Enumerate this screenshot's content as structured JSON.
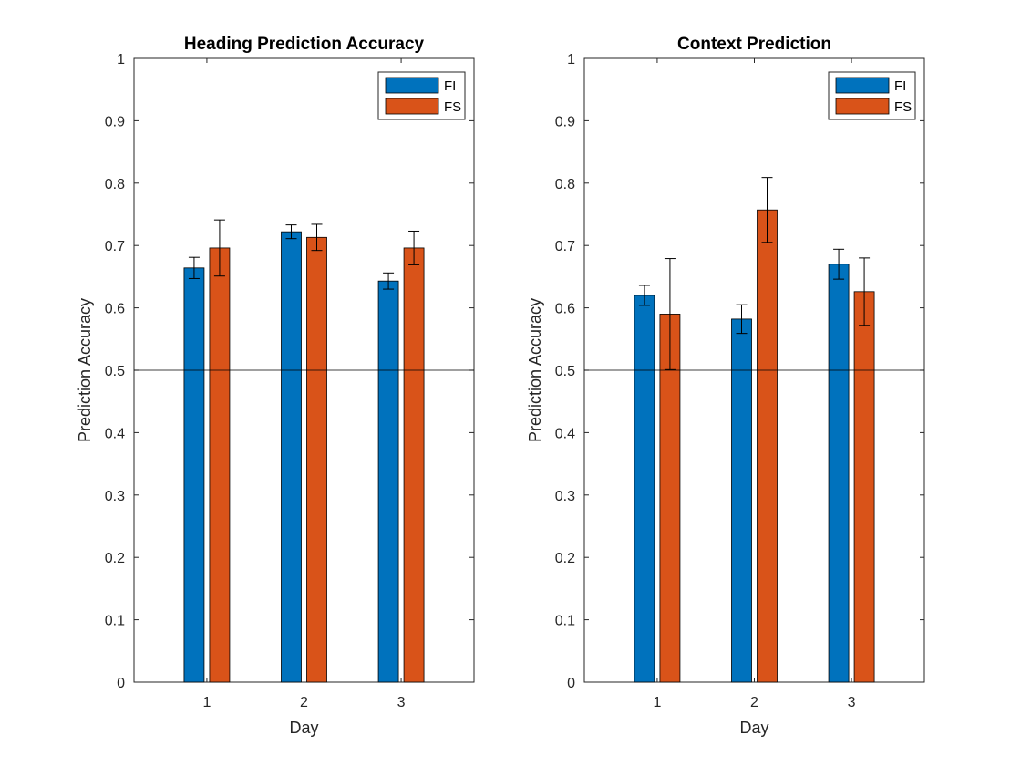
{
  "chart_data": [
    {
      "type": "bar",
      "title": "Heading Prediction Accuracy",
      "xlabel": "Day",
      "ylabel": "Prediction Accuracy",
      "categories": [
        "1",
        "2",
        "3"
      ],
      "ylim": [
        0,
        1
      ],
      "yticks": [
        "0",
        "0.1",
        "0.2",
        "0.3",
        "0.4",
        "0.5",
        "0.6",
        "0.7",
        "0.8",
        "0.9",
        "1"
      ],
      "reference_line": 0.5,
      "legend_position": "top-right",
      "series": [
        {
          "name": "FI",
          "color": "#0072BD",
          "values": [
            0.664,
            0.722,
            0.643
          ],
          "errors": [
            0.017,
            0.011,
            0.013
          ]
        },
        {
          "name": "FS",
          "color": "#D95319",
          "values": [
            0.696,
            0.713,
            0.696
          ],
          "errors": [
            0.045,
            0.021,
            0.027
          ]
        }
      ]
    },
    {
      "type": "bar",
      "title": "Context Prediction",
      "xlabel": "Day",
      "ylabel": "Prediction Accuracy",
      "categories": [
        "1",
        "2",
        "3"
      ],
      "ylim": [
        0,
        1
      ],
      "yticks": [
        "0",
        "0.1",
        "0.2",
        "0.3",
        "0.4",
        "0.5",
        "0.6",
        "0.7",
        "0.8",
        "0.9",
        "1"
      ],
      "reference_line": 0.5,
      "legend_position": "top-right",
      "series": [
        {
          "name": "FI",
          "color": "#0072BD",
          "values": [
            0.62,
            0.582,
            0.67
          ],
          "errors": [
            0.016,
            0.023,
            0.024
          ]
        },
        {
          "name": "FS",
          "color": "#D95319",
          "values": [
            0.59,
            0.757,
            0.626
          ],
          "errors": [
            0.089,
            0.052,
            0.054
          ]
        }
      ]
    }
  ]
}
